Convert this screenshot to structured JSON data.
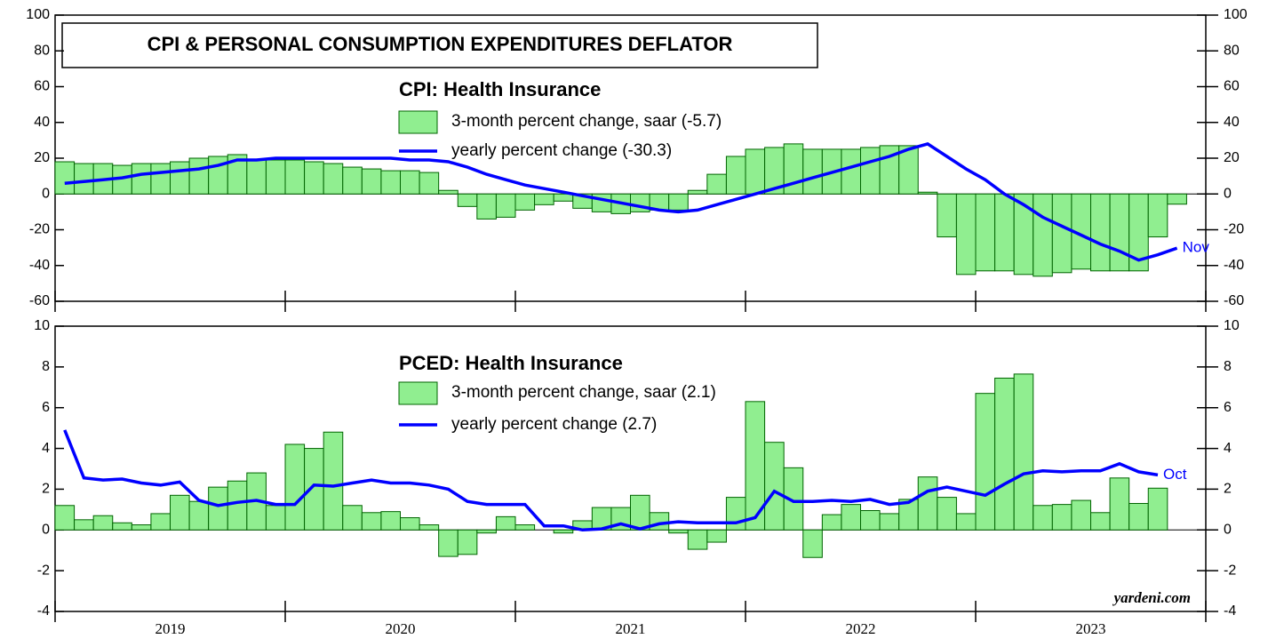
{
  "chart_data": [
    {
      "type": "combo",
      "title": "CPI & PERSONAL CONSUMPTION EXPENDITURES DEFLATOR",
      "subtitle": "CPI: Health Insurance",
      "end_label": "Nov",
      "ylim": [
        -60,
        100
      ],
      "yticks": [
        -60,
        -40,
        -20,
        0,
        20,
        40,
        60,
        80,
        100
      ],
      "series": [
        {
          "name": "3-month percent change, saar (-5.7)",
          "type": "bar",
          "color": "#90ee90",
          "values": [
            18,
            17,
            17,
            16,
            17,
            17,
            18,
            20,
            21,
            22,
            19,
            19,
            19,
            18,
            17,
            15,
            14,
            13,
            13,
            12,
            2,
            -7,
            -14,
            -13,
            -9,
            -6,
            -4,
            -8,
            -10,
            -11,
            -10,
            -9,
            -9,
            2,
            11,
            21,
            25,
            26,
            28,
            25,
            25,
            25,
            26,
            27,
            27,
            1,
            -24,
            -45,
            -43,
            -43,
            -45,
            -46,
            -44,
            -42,
            -43,
            -43,
            -43,
            -24,
            -5.7,
            null
          ]
        },
        {
          "name": "yearly percent change (-30.3)",
          "type": "line",
          "color": "#0000ff",
          "values": [
            6,
            7,
            8,
            9,
            11,
            12,
            13,
            14,
            16,
            19,
            19,
            20,
            20,
            20,
            20,
            20,
            20,
            20,
            19,
            19,
            18,
            15,
            11,
            8,
            5,
            3,
            1,
            -1,
            -3,
            -5,
            -7,
            -9,
            -10,
            -9,
            -6,
            -3,
            0,
            3,
            6,
            9,
            12,
            15,
            18,
            21,
            25,
            28,
            21,
            14,
            8,
            0,
            -6,
            -13,
            -18,
            -23,
            -28,
            -32,
            -37,
            -34,
            -30.3,
            null
          ]
        }
      ]
    },
    {
      "type": "combo",
      "subtitle": "PCED: Health Insurance",
      "end_label": "Oct",
      "source": "yardeni.com",
      "ylim": [
        -4,
        10
      ],
      "yticks": [
        -4,
        -2,
        0,
        2,
        4,
        6,
        8,
        10
      ],
      "categories": [
        "2019",
        null,
        null,
        null,
        null,
        null,
        null,
        null,
        null,
        null,
        null,
        null,
        "2020",
        null,
        null,
        null,
        null,
        null,
        null,
        null,
        null,
        null,
        null,
        null,
        "2021",
        null,
        null,
        null,
        null,
        null,
        null,
        null,
        null,
        null,
        null,
        null,
        "2022",
        null,
        null,
        null,
        null,
        null,
        null,
        null,
        null,
        null,
        null,
        null,
        "2023",
        null,
        null,
        null,
        null,
        null,
        null,
        null,
        null,
        null,
        null,
        null
      ],
      "series": [
        {
          "name": "3-month percent change, saar (2.1)",
          "type": "bar",
          "color": "#90ee90",
          "values": [
            1.2,
            0.5,
            0.7,
            0.35,
            0.25,
            0.8,
            1.7,
            1.4,
            2.1,
            2.4,
            2.8,
            1.2,
            4.2,
            4.0,
            4.8,
            1.2,
            0.85,
            0.9,
            0.6,
            0.25,
            -1.3,
            -1.2,
            -0.15,
            0.65,
            0.25,
            0.0,
            -0.15,
            0.45,
            1.1,
            1.1,
            1.7,
            0.85,
            -0.15,
            -0.95,
            -0.6,
            1.6,
            6.3,
            4.3,
            3.05,
            -1.35,
            0.75,
            1.25,
            0.95,
            0.8,
            1.5,
            2.6,
            1.6,
            0.8,
            6.7,
            7.45,
            7.65,
            1.2,
            1.25,
            1.45,
            0.85,
            2.55,
            1.3,
            2.05,
            null,
            null
          ]
        },
        {
          "name": "yearly percent change (2.7)",
          "type": "line",
          "color": "#0000ff",
          "values": [
            4.9,
            2.55,
            2.45,
            2.5,
            2.3,
            2.2,
            2.35,
            1.45,
            1.2,
            1.35,
            1.45,
            1.25,
            1.25,
            2.2,
            2.15,
            2.3,
            2.45,
            2.3,
            2.3,
            2.2,
            2.0,
            1.4,
            1.25,
            1.25,
            1.25,
            0.2,
            0.2,
            0.0,
            0.05,
            0.3,
            0.05,
            0.3,
            0.4,
            0.35,
            0.35,
            0.35,
            0.6,
            1.9,
            1.4,
            1.4,
            1.45,
            1.4,
            1.5,
            1.25,
            1.35,
            1.9,
            2.1,
            1.9,
            1.7,
            2.25,
            2.75,
            2.9,
            2.85,
            2.9,
            2.9,
            3.25,
            2.85,
            2.7,
            null,
            null
          ]
        }
      ]
    }
  ]
}
